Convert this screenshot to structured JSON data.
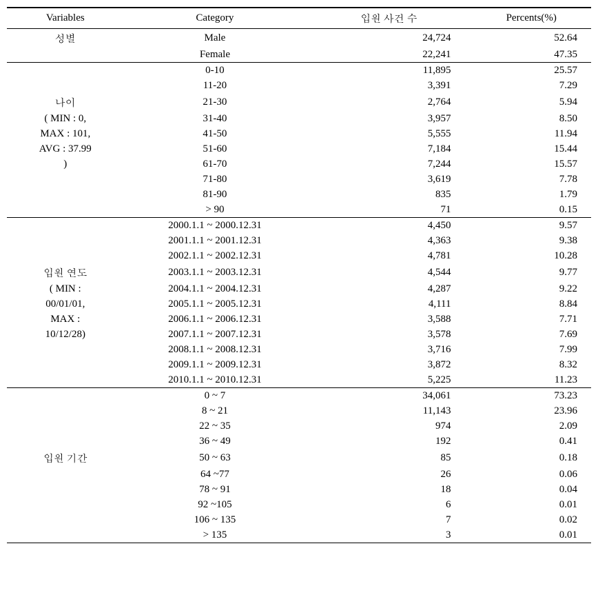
{
  "headers": {
    "variables": "Variables",
    "category": "Category",
    "count": "입원 사건 수",
    "percents": "Percents(%)"
  },
  "groups": [
    {
      "variable_lines": [
        "성별"
      ],
      "rows": [
        {
          "cat": "Male",
          "count": "24,724",
          "pct": "52.64"
        },
        {
          "cat": "Female",
          "count": "22,241",
          "pct": "47.35"
        }
      ]
    },
    {
      "variable_lines": [
        "나이",
        "( MIN : 0,",
        "MAX : 101,",
        "AVG : 37.99",
        ")"
      ],
      "rows": [
        {
          "cat": "0-10",
          "count": "11,895",
          "pct": "25.57"
        },
        {
          "cat": "11-20",
          "count": "3,391",
          "pct": "7.29"
        },
        {
          "cat": "21-30",
          "count": "2,764",
          "pct": "5.94"
        },
        {
          "cat": "31-40",
          "count": "3,957",
          "pct": "8.50"
        },
        {
          "cat": "41-50",
          "count": "5,555",
          "pct": "11.94"
        },
        {
          "cat": "51-60",
          "count": "7,184",
          "pct": "15.44"
        },
        {
          "cat": "61-70",
          "count": "7,244",
          "pct": "15.57"
        },
        {
          "cat": "71-80",
          "count": "3,619",
          "pct": "7.78"
        },
        {
          "cat": "81-90",
          "count": "835",
          "pct": "1.79"
        },
        {
          "cat": "> 90",
          "count": "71",
          "pct": "0.15"
        }
      ]
    },
    {
      "variable_lines": [
        "입원 연도",
        "( MIN :",
        "00/01/01,",
        "MAX :",
        "10/12/28)"
      ],
      "rows": [
        {
          "cat": "2000.1.1 ~ 2000.12.31",
          "count": "4,450",
          "pct": "9.57"
        },
        {
          "cat": "2001.1.1 ~ 2001.12.31",
          "count": "4,363",
          "pct": "9.38"
        },
        {
          "cat": "2002.1.1 ~ 2002.12.31",
          "count": "4,781",
          "pct": "10.28"
        },
        {
          "cat": "2003.1.1 ~ 2003.12.31",
          "count": "4,544",
          "pct": "9.77"
        },
        {
          "cat": "2004.1.1 ~ 2004.12.31",
          "count": "4,287",
          "pct": "9.22"
        },
        {
          "cat": "2005.1.1 ~ 2005.12.31",
          "count": "4,111",
          "pct": "8.84"
        },
        {
          "cat": "2006.1.1 ~ 2006.12.31",
          "count": "3,588",
          "pct": "7.71"
        },
        {
          "cat": "2007.1.1 ~ 2007.12.31",
          "count": "3,578",
          "pct": "7.69"
        },
        {
          "cat": "2008.1.1 ~ 2008.12.31",
          "count": "3,716",
          "pct": "7.99"
        },
        {
          "cat": "2009.1.1 ~ 2009.12.31",
          "count": "3,872",
          "pct": "8.32"
        },
        {
          "cat": "2010.1.1 ~ 2010.12.31",
          "count": "5,225",
          "pct": "11.23"
        }
      ]
    },
    {
      "variable_lines": [
        "입원 기간"
      ],
      "rows": [
        {
          "cat": "0 ~ 7",
          "count": "34,061",
          "pct": "73.23"
        },
        {
          "cat": "8 ~ 21",
          "count": "11,143",
          "pct": "23.96"
        },
        {
          "cat": "22 ~ 35",
          "count": "974",
          "pct": "2.09"
        },
        {
          "cat": "36 ~ 49",
          "count": "192",
          "pct": "0.41"
        },
        {
          "cat": "50 ~ 63",
          "count": "85",
          "pct": "0.18"
        },
        {
          "cat": "64 ~77",
          "count": "26",
          "pct": "0.06"
        },
        {
          "cat": "78 ~ 91",
          "count": "18",
          "pct": "0.04"
        },
        {
          "cat": "92 ~105",
          "count": "6",
          "pct": "0.01"
        },
        {
          "cat": "106 ~ 135",
          "count": "7",
          "pct": "0.02"
        },
        {
          "cat": "> 135",
          "count": "3",
          "pct": "0.01"
        }
      ]
    }
  ]
}
